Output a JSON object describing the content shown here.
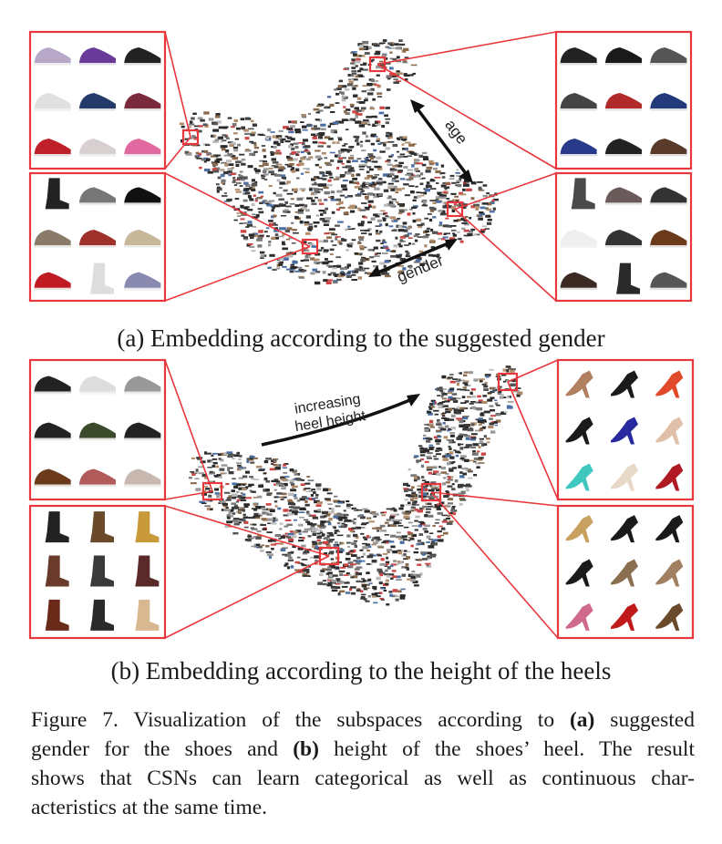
{
  "panel_a": {
    "caption": "(a) Embedding according to the suggested gender",
    "arrow_labels": {
      "age": "age",
      "gender": "gender"
    }
  },
  "panel_b": {
    "caption": "(b) Embedding according to the height of the heels",
    "arrow_label_line1": "increasing",
    "arrow_label_line2": "heel height"
  },
  "caption": {
    "line1_pre": "Figure 7. Visualization of the subspaces according to ",
    "line1_bold": "(a)",
    "line1_post": " suggested",
    "line2_pre": "gender for the shoes and ",
    "line2_bold": "(b)",
    "line2_post": " height of the shoes’ heel.  The result",
    "line3": "shows that CSNs can learn categorical as well as continuous char-",
    "line4": "acteristics at the same time."
  },
  "colors": {
    "highlight": "#e8383d",
    "shoe_dark": "#2a2a2a",
    "arrow": "#111111"
  }
}
